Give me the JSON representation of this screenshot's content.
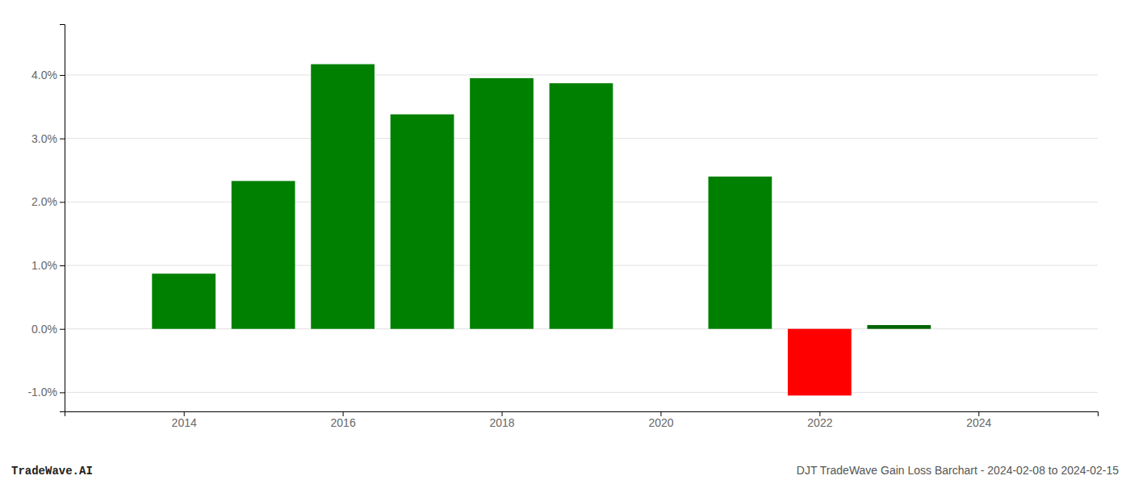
{
  "chart_data": {
    "type": "bar",
    "x": [
      2014,
      2015,
      2016,
      2017,
      2018,
      2019,
      2021,
      2022,
      2023
    ],
    "values": [
      0.0087,
      0.0233,
      0.0417,
      0.0338,
      0.0395,
      0.0387,
      0.024,
      -0.0105,
      0.0006
    ],
    "colors": [
      "#008000",
      "#008000",
      "#008000",
      "#008000",
      "#008000",
      "#008000",
      "#008000",
      "#ff0000",
      "#006400"
    ],
    "xlim": [
      2012.5,
      2025.5
    ],
    "xticks": [
      2014,
      2016,
      2018,
      2020,
      2022,
      2024
    ],
    "ylim": [
      -0.013,
      0.048
    ],
    "yticks": [
      {
        "value": -0.01,
        "label": "-1.0%"
      },
      {
        "value": 0.0,
        "label": "0.0%"
      },
      {
        "value": 0.01,
        "label": "1.0%"
      },
      {
        "value": 0.02,
        "label": "2.0%"
      },
      {
        "value": 0.03,
        "label": "3.0%"
      },
      {
        "value": 0.04,
        "label": "4.0%"
      }
    ],
    "grid": true,
    "annotations": [
      "TradeWave.AI",
      "DJT TradeWave Gain Loss Barchart - 2024-02-08 to 2024-02-15"
    ]
  }
}
